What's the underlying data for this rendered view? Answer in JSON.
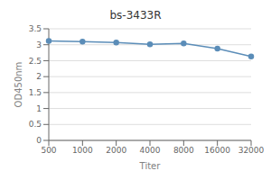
{
  "chart_data": {
    "type": "line",
    "title": "bs-3433R",
    "x_label": "Titer",
    "y_label": "OD450nm",
    "categories": [
      "500",
      "1000",
      "2000",
      "4000",
      "8000",
      "16000",
      "32000"
    ],
    "values": [
      3.12,
      3.1,
      3.07,
      3.01,
      3.04,
      2.88,
      2.63
    ],
    "color": "#5b8db8",
    "marker": "circle",
    "ylim": [
      0,
      3.5
    ],
    "yticks": [
      0,
      0.5,
      1,
      1.5,
      2,
      2.5,
      3,
      3.5
    ],
    "grid": true
  }
}
